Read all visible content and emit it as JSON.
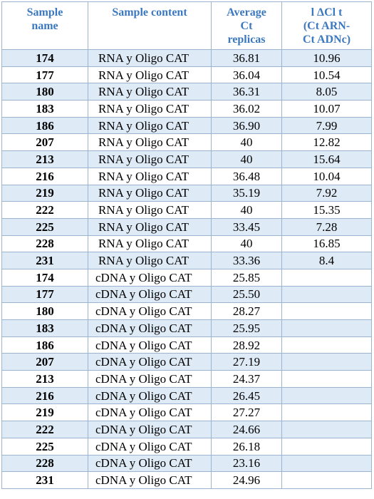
{
  "table": {
    "headers": {
      "sample_name": [
        "Sample",
        "name"
      ],
      "sample_content": "Sample content",
      "average_ct": [
        "Average",
        "Ct",
        "replicas"
      ],
      "delta_ct": [
        "l ΔCl t",
        "(Ct ARN-",
        "Ct ADNc)"
      ]
    },
    "rows": [
      {
        "sample": "174",
        "content": "RNA y Oligo CAT",
        "avg_ct": "36.81",
        "delta": "10.96"
      },
      {
        "sample": "177",
        "content": "RNA y Oligo CAT",
        "avg_ct": "36.04",
        "delta": "10.54"
      },
      {
        "sample": "180",
        "content": "RNA y Oligo CAT",
        "avg_ct": "36.31",
        "delta": "8.05"
      },
      {
        "sample": "183",
        "content": "RNA y Oligo CAT",
        "avg_ct": "36.02",
        "delta": "10.07"
      },
      {
        "sample": "186",
        "content": "RNA y Oligo CAT",
        "avg_ct": "36.90",
        "delta": "7.99"
      },
      {
        "sample": "207",
        "content": "RNA y Oligo CAT",
        "avg_ct": "40",
        "delta": "12.82"
      },
      {
        "sample": "213",
        "content": "RNA y Oligo CAT",
        "avg_ct": "40",
        "delta": "15.64"
      },
      {
        "sample": "216",
        "content": "RNA y Oligo CAT",
        "avg_ct": "36.48",
        "delta": "10.04"
      },
      {
        "sample": "219",
        "content": "RNA y Oligo CAT",
        "avg_ct": "35.19",
        "delta": "7.92"
      },
      {
        "sample": "222",
        "content": "RNA y Oligo CAT",
        "avg_ct": "40",
        "delta": "15.35"
      },
      {
        "sample": "225",
        "content": "RNA y Oligo CAT",
        "avg_ct": "33.45",
        "delta": "7.28"
      },
      {
        "sample": "228",
        "content": "RNA y Oligo CAT",
        "avg_ct": "40",
        "delta": "16.85"
      },
      {
        "sample": "231",
        "content": "RNA y Oligo CAT",
        "avg_ct": "33.36",
        "delta": "8.4"
      },
      {
        "sample": "174",
        "content": "cDNA y Oligo CAT",
        "avg_ct": "25.85",
        "delta": ""
      },
      {
        "sample": "177",
        "content": "cDNA y Oligo CAT",
        "avg_ct": "25.50",
        "delta": ""
      },
      {
        "sample": "180",
        "content": "cDNA y Oligo CAT",
        "avg_ct": "28.27",
        "delta": ""
      },
      {
        "sample": "183",
        "content": "cDNA y Oligo CAT",
        "avg_ct": "25.95",
        "delta": ""
      },
      {
        "sample": "186",
        "content": "cDNA y Oligo CAT",
        "avg_ct": "28.92",
        "delta": ""
      },
      {
        "sample": "207",
        "content": "cDNA y Oligo CAT",
        "avg_ct": "27.19",
        "delta": ""
      },
      {
        "sample": "213",
        "content": "cDNA y Oligo CAT",
        "avg_ct": "24.37",
        "delta": ""
      },
      {
        "sample": "216",
        "content": "cDNA y Oligo CAT",
        "avg_ct": "26.45",
        "delta": ""
      },
      {
        "sample": "219",
        "content": "cDNA y Oligo CAT",
        "avg_ct": "27.27",
        "delta": ""
      },
      {
        "sample": "222",
        "content": "cDNA y Oligo CAT",
        "avg_ct": "24.66",
        "delta": ""
      },
      {
        "sample": "225",
        "content": "cDNA y Oligo CAT",
        "avg_ct": "26.18",
        "delta": ""
      },
      {
        "sample": "228",
        "content": "cDNA y Oligo CAT",
        "avg_ct": "23.16",
        "delta": ""
      },
      {
        "sample": "231",
        "content": "cDNA y Oligo CAT",
        "avg_ct": "24.96",
        "delta": ""
      }
    ]
  },
  "colors": {
    "header_text": "#3b78bf",
    "row_shade": "#deeaf6",
    "border": "#9bb4cf"
  }
}
